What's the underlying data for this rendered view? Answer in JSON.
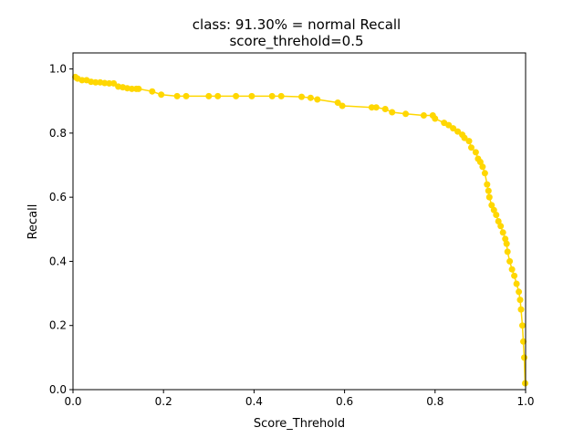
{
  "chart_data": {
    "type": "line",
    "title": "class: 91.30% = normal Recall",
    "subtitle": "score_threhold=0.5",
    "xlabel": "Score_Threhold",
    "ylabel": "Recall",
    "xlim": [
      0.0,
      1.0
    ],
    "ylim": [
      0.0,
      1.05
    ],
    "xticks": [
      "0.0",
      "0.2",
      "0.4",
      "0.6",
      "0.8",
      "1.0"
    ],
    "yticks": [
      "0.0",
      "0.2",
      "0.4",
      "0.6",
      "0.8",
      "1.0"
    ],
    "grid": false,
    "series": [
      {
        "color": "#FFD700",
        "marker": "circle",
        "x": [
          0.005,
          0.01,
          0.02,
          0.03,
          0.04,
          0.05,
          0.06,
          0.07,
          0.08,
          0.09,
          0.1,
          0.11,
          0.12,
          0.13,
          0.14,
          0.145,
          0.175,
          0.195,
          0.23,
          0.25,
          0.3,
          0.32,
          0.36,
          0.395,
          0.44,
          0.46,
          0.505,
          0.525,
          0.54,
          0.585,
          0.595,
          0.66,
          0.67,
          0.69,
          0.705,
          0.735,
          0.775,
          0.795,
          0.8,
          0.82,
          0.83,
          0.84,
          0.85,
          0.86,
          0.865,
          0.875,
          0.88,
          0.89,
          0.895,
          0.9,
          0.905,
          0.91,
          0.915,
          0.918,
          0.92,
          0.925,
          0.93,
          0.935,
          0.94,
          0.945,
          0.95,
          0.955,
          0.958,
          0.96,
          0.965,
          0.97,
          0.975,
          0.98,
          0.985,
          0.988,
          0.99,
          0.993,
          0.995,
          0.997,
          0.999
        ],
        "y": [
          0.975,
          0.97,
          0.965,
          0.965,
          0.96,
          0.958,
          0.958,
          0.956,
          0.955,
          0.955,
          0.945,
          0.943,
          0.94,
          0.938,
          0.938,
          0.938,
          0.93,
          0.92,
          0.915,
          0.915,
          0.915,
          0.915,
          0.915,
          0.915,
          0.915,
          0.915,
          0.913,
          0.91,
          0.905,
          0.895,
          0.885,
          0.88,
          0.88,
          0.875,
          0.865,
          0.86,
          0.855,
          0.855,
          0.845,
          0.832,
          0.825,
          0.815,
          0.805,
          0.795,
          0.785,
          0.775,
          0.755,
          0.74,
          0.72,
          0.71,
          0.695,
          0.675,
          0.64,
          0.62,
          0.6,
          0.575,
          0.56,
          0.545,
          0.525,
          0.51,
          0.49,
          0.47,
          0.455,
          0.43,
          0.4,
          0.375,
          0.355,
          0.33,
          0.305,
          0.28,
          0.25,
          0.2,
          0.15,
          0.1,
          0.02
        ]
      }
    ]
  }
}
